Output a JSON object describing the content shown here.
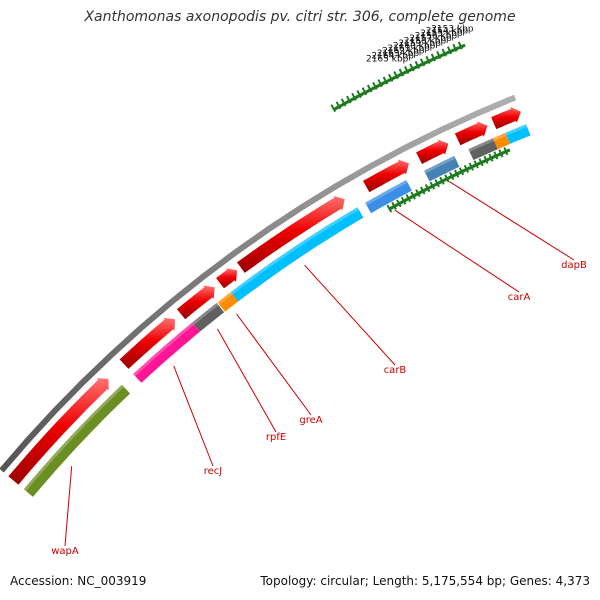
{
  "title": "Xanthomonas axonopodis pv. citri str. 306, complete genome",
  "accession": "Accession: NC_003919",
  "summary": "Topology: circular; Length: 5,175,554 bp; Genes: 4,373",
  "colors": {
    "backbone": "#7a7a7a",
    "tick": "#1f7a1f",
    "label_line": "#cc0000",
    "forward_gene": "#ee0000"
  },
  "scale": {
    "unit": "kbp",
    "labels": [
      "2153 kbp",
      "2154 kbp",
      "2155 kbp",
      "2156 kbp",
      "2157 kbp",
      "2158 kbp",
      "2159 kbp",
      "2160 kbp",
      "2161 kbp",
      "2162 kbp",
      "2163 kbp",
      "2164 kbp",
      "2165 kbp"
    ]
  },
  "genes": [
    {
      "name": "wapA",
      "color": "#6b8e23",
      "labeled": true
    },
    {
      "name": "recJ",
      "color": "#ff1493",
      "labeled": true
    },
    {
      "name": "rpfE",
      "color": "#606060",
      "labeled": true
    },
    {
      "name": "greA",
      "color": "#ff8c00",
      "labeled": true
    },
    {
      "name": "carB",
      "color": "#00bfff",
      "labeled": true
    },
    {
      "name": "carA",
      "color": "#3a8ee6",
      "labeled": true
    },
    {
      "name": "dapB",
      "color": "#4682b4",
      "labeled": true
    }
  ]
}
